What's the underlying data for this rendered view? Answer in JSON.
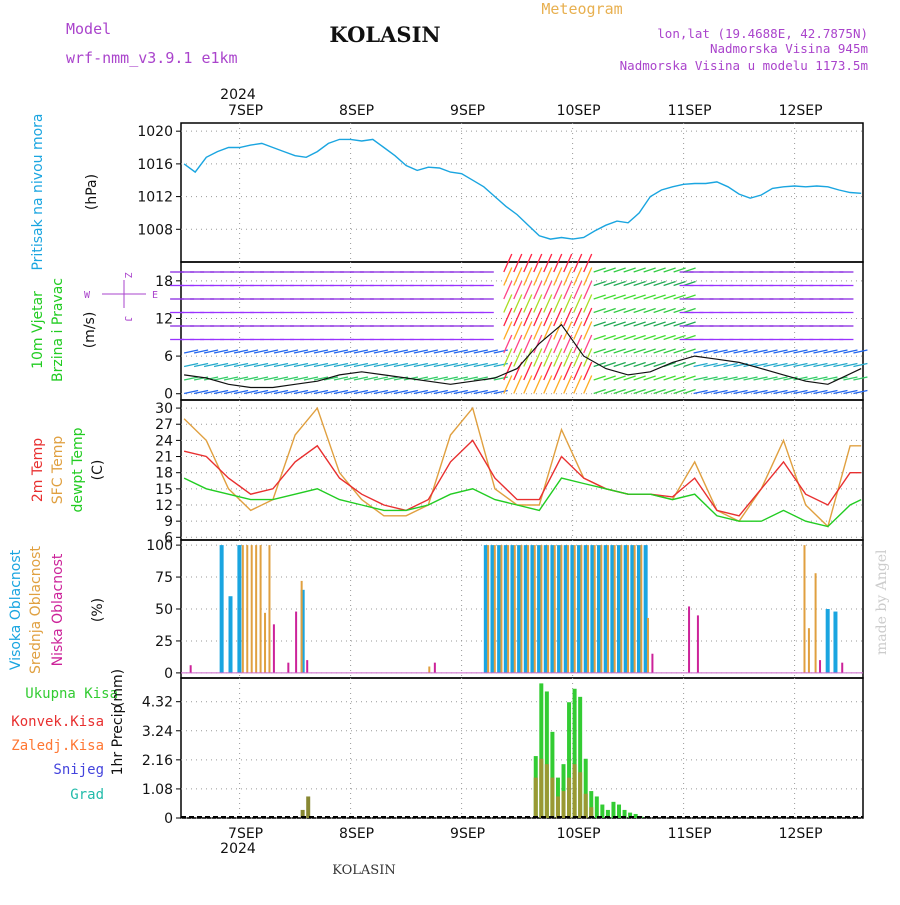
{
  "header": {
    "model_label": "Model",
    "model_name": "wrf-nmm_v3.9.1 e1km",
    "station": "KOLASIN",
    "product": "Meteogram",
    "lonlat": "lon,lat (19.4688E, 42.7875N)",
    "elevation": "Nadmorska Visina 945m",
    "model_elevation": "Nadmorska Visina u modelu 1173.5m",
    "year_top": "2024",
    "year_bottom": "2024",
    "footer_station": "KOLASIN",
    "credit": "made by Angel"
  },
  "colors": {
    "pressure": "#1aa5e0",
    "temp2m": "#e83030",
    "sfc_temp": "#e0a040",
    "dewpoint": "#22cc22",
    "high_cloud": "#1aa5e0",
    "mid_cloud": "#e0a040",
    "low_cloud": "#cc2299",
    "total_precip": "#33cc33",
    "conv_precip": "#e83030",
    "frozen_precip": "#ff7733",
    "snow": "#4444dd",
    "graupel": "#22bbaa",
    "purple_text": "#aa44cc",
    "gold_text": "#e8b050"
  },
  "wind_compass": {
    "n": "Z",
    "s": "J",
    "w": "W",
    "e": "E"
  },
  "chart_data": [
    {
      "type": "line",
      "id": "pressure",
      "ylabel": "Pritisak na nivou mora",
      "unit": "(hPa)",
      "ylim": [
        1004,
        1021
      ],
      "yticks": [
        "1020",
        "1016",
        "1012",
        "1008"
      ],
      "ytick_values": [
        1020,
        1016,
        1012,
        1008
      ],
      "x_dates": [
        "7SEP",
        "8SEP",
        "9SEP",
        "10SEP",
        "11SEP",
        "12SEP"
      ],
      "series": [
        {
          "x": [
            -0.5,
            -0.4,
            -0.3,
            -0.2,
            -0.1,
            0,
            0.1,
            0.2,
            0.3,
            0.4,
            0.5,
            0.6,
            0.7,
            0.8,
            0.9,
            1.0,
            1.1,
            1.2,
            1.3,
            1.4,
            1.5,
            1.6,
            1.7,
            1.8,
            1.9,
            2.0,
            2.1,
            2.2,
            2.3,
            2.4,
            2.5,
            2.6,
            2.7,
            2.8,
            2.9,
            3.0,
            3.1,
            3.2,
            3.3,
            3.4,
            3.5,
            3.6,
            3.7,
            3.8,
            3.9,
            4.0,
            4.1,
            4.2,
            4.3,
            4.4,
            4.5,
            4.6,
            4.7,
            4.8,
            4.9,
            5.0,
            5.1,
            5.2,
            5.3,
            5.4,
            5.5,
            5.6
          ],
          "y": [
            1016,
            1015,
            1016.8,
            1017.5,
            1018,
            1018,
            1018.3,
            1018.5,
            1018,
            1017.5,
            1017,
            1016.8,
            1017.5,
            1018.5,
            1019,
            1019,
            1018.8,
            1019,
            1018,
            1017,
            1015.8,
            1015.2,
            1015.6,
            1015.5,
            1015,
            1014.8,
            1014,
            1013.2,
            1012,
            1010.8,
            1009.8,
            1008.5,
            1007.2,
            1006.8,
            1007,
            1006.8,
            1007,
            1007.8,
            1008.5,
            1009,
            1008.8,
            1010,
            1012,
            1012.8,
            1013.2,
            1013.5,
            1013.6,
            1013.6,
            1013.8,
            1013.2,
            1012.3,
            1011.8,
            1012.2,
            1013,
            1013.2,
            1013.3,
            1013.2,
            1013.3,
            1013.2,
            1012.8,
            1012.5,
            1012.4
          ]
        }
      ]
    },
    {
      "type": "line",
      "id": "wind",
      "ylabel": "10m Vjetar",
      "ylabel2": "Brzina i Pravac",
      "unit": "(m/s)",
      "ylim": [
        -1,
        21
      ],
      "yticks": [
        "18",
        "12",
        "6",
        "0"
      ],
      "ytick_values": [
        18,
        12,
        6,
        0
      ],
      "series": [
        {
          "name": "speed",
          "x": [
            -0.5,
            -0.3,
            -0.1,
            0.1,
            0.3,
            0.5,
            0.7,
            0.9,
            1.1,
            1.3,
            1.5,
            1.7,
            1.9,
            2.1,
            2.3,
            2.5,
            2.7,
            2.9,
            3.1,
            3.3,
            3.5,
            3.7,
            3.9,
            4.1,
            4.3,
            4.5,
            4.7,
            4.9,
            5.1,
            5.3,
            5.6
          ],
          "y": [
            3,
            2.5,
            1.5,
            1,
            1,
            1.5,
            2,
            3,
            3.5,
            3,
            2.5,
            2,
            1.5,
            2,
            2.5,
            4,
            8,
            11,
            6,
            4,
            3,
            3.5,
            5,
            6,
            5.5,
            5,
            4,
            3,
            2,
            1.5,
            4
          ]
        }
      ]
    },
    {
      "type": "line",
      "id": "temperature",
      "ylabel": "2m Temp",
      "ylabel2": "SFC Temp",
      "ylabel3": "dewpt Temp",
      "unit": "(C)",
      "ylim": [
        5.5,
        31.5
      ],
      "yticks": [
        "30",
        "27",
        "24",
        "21",
        "18",
        "15",
        "12",
        "9",
        "6"
      ],
      "ytick_values": [
        30,
        27,
        24,
        21,
        18,
        15,
        12,
        9,
        6
      ],
      "series": [
        {
          "name": "2m Temp",
          "x": [
            -0.5,
            -0.3,
            -0.1,
            0.1,
            0.3,
            0.5,
            0.7,
            0.9,
            1.1,
            1.3,
            1.5,
            1.7,
            1.9,
            2.1,
            2.3,
            2.5,
            2.7,
            2.9,
            3.1,
            3.3,
            3.5,
            3.7,
            3.9,
            4.1,
            4.3,
            4.5,
            4.7,
            4.9,
            5.1,
            5.3,
            5.5,
            5.6
          ],
          "y": [
            22,
            21,
            17,
            14,
            15,
            20,
            23,
            17,
            14,
            12,
            11,
            13,
            20,
            24,
            17,
            13,
            13,
            21,
            17,
            15,
            14,
            14,
            13.5,
            17,
            11,
            10,
            15,
            20,
            14,
            12,
            18,
            18
          ]
        },
        {
          "name": "SFC Temp",
          "x": [
            -0.5,
            -0.3,
            -0.1,
            0.1,
            0.3,
            0.5,
            0.7,
            0.9,
            1.1,
            1.3,
            1.5,
            1.7,
            1.9,
            2.1,
            2.3,
            2.5,
            2.7,
            2.9,
            3.1,
            3.3,
            3.5,
            3.7,
            3.9,
            4.1,
            4.3,
            4.5,
            4.7,
            4.9,
            5.1,
            5.3,
            5.5,
            5.6
          ],
          "y": [
            28,
            24,
            15,
            11,
            13,
            25,
            30,
            18,
            13,
            10,
            10,
            12,
            25,
            30,
            15,
            12,
            12,
            26,
            17,
            15,
            14,
            14,
            13,
            20,
            11,
            9,
            15,
            24,
            12,
            8,
            23,
            23
          ]
        },
        {
          "name": "dewpt Temp",
          "x": [
            -0.5,
            -0.3,
            -0.1,
            0.1,
            0.3,
            0.5,
            0.7,
            0.9,
            1.1,
            1.3,
            1.5,
            1.7,
            1.9,
            2.1,
            2.3,
            2.5,
            2.7,
            2.9,
            3.1,
            3.3,
            3.5,
            3.7,
            3.9,
            4.1,
            4.3,
            4.5,
            4.7,
            4.9,
            5.1,
            5.3,
            5.5,
            5.6
          ],
          "y": [
            17,
            15,
            14,
            13,
            13,
            14,
            15,
            13,
            12,
            11,
            11,
            12,
            14,
            15,
            13,
            12,
            11,
            17,
            16,
            15,
            14,
            14,
            13,
            14,
            10,
            9,
            9,
            11,
            9,
            8,
            12,
            13
          ]
        }
      ]
    },
    {
      "type": "bar",
      "id": "clouds",
      "ylabel": "Visoka Oblacnost",
      "ylabel2": "Srednja Oblacnost",
      "ylabel3": "Niska Oblacnost",
      "unit": "(%)",
      "ylim": [
        -4,
        104
      ],
      "yticks": [
        "100",
        "75",
        "50",
        "25",
        "0"
      ],
      "ytick_values": [
        100,
        75,
        50,
        25,
        0
      ],
      "series": [
        {
          "name": "Visoka Oblacnost",
          "x": [
            -0.18,
            -0.1,
            -0.02,
            0.55,
            2.2,
            2.26,
            2.32,
            2.38,
            2.44,
            2.5,
            2.56,
            2.62,
            2.68,
            2.74,
            2.8,
            2.86,
            2.92,
            2.98,
            3.04,
            3.1,
            3.16,
            3.22,
            3.28,
            3.34,
            3.4,
            3.46,
            3.52,
            3.58,
            3.64,
            5.28,
            5.35
          ],
          "y": [
            100,
            60,
            100,
            65,
            100,
            100,
            100,
            100,
            100,
            100,
            100,
            100,
            100,
            100,
            100,
            100,
            100,
            100,
            100,
            100,
            100,
            100,
            100,
            100,
            100,
            100,
            100,
            100,
            100,
            50,
            48
          ]
        },
        {
          "name": "Srednja Oblacnost",
          "x": [
            0.02,
            0.06,
            0.1,
            0.14,
            0.18,
            0.22,
            0.26,
            0.55,
            2.23,
            2.29,
            2.35,
            2.41,
            2.47,
            2.53,
            2.59,
            2.65,
            2.71,
            2.77,
            2.83,
            2.89,
            2.95,
            3.01,
            3.07,
            3.13,
            3.19,
            3.25,
            3.31,
            3.37,
            3.43,
            3.49,
            3.55,
            3.61,
            3.67,
            1.7,
            5.08,
            5.12,
            5.18
          ],
          "y": [
            100,
            100,
            100,
            100,
            100,
            47,
            100,
            72,
            100,
            100,
            100,
            100,
            100,
            100,
            100,
            100,
            100,
            100,
            100,
            100,
            100,
            100,
            100,
            100,
            100,
            100,
            100,
            100,
            100,
            100,
            100,
            100,
            43,
            5,
            100,
            35,
            78
          ]
        },
        {
          "name": "Niska Oblacnost",
          "x": [
            -0.45,
            0.3,
            0.43,
            0.5,
            0.6,
            1.75,
            3.71,
            4.04,
            4.12,
            5.22,
            5.42
          ],
          "y": [
            6,
            38,
            8,
            48,
            10,
            8,
            15,
            52,
            45,
            10,
            8
          ]
        }
      ]
    },
    {
      "type": "bar",
      "id": "precip",
      "ylabel": "1hr Precip",
      "unit": "(mm)",
      "ylim": [
        0,
        5.2
      ],
      "yticks": [
        "4.32",
        "3.24",
        "2.16",
        "1.08",
        "0"
      ],
      "ytick_values": [
        4.32,
        3.24,
        2.16,
        1.08,
        0
      ],
      "legend": [
        "Ukupna Kisa",
        "Konvek.Kisa",
        "Zaledj.Kisa",
        "Snijeg",
        "Grad"
      ],
      "series": [
        {
          "name": "Ukupna Kisa",
          "x": [
            0.55,
            0.6,
            2.65,
            2.7,
            2.75,
            2.8,
            2.85,
            2.9,
            2.95,
            3.0,
            3.05,
            3.1,
            3.15,
            3.2,
            3.25,
            3.3,
            3.35,
            3.4,
            3.45,
            3.5,
            3.55,
            3.6
          ],
          "y": [
            0.3,
            0.8,
            2.3,
            5.0,
            4.7,
            3.2,
            1.5,
            2.0,
            4.3,
            4.8,
            4.5,
            2.2,
            1.0,
            0.8,
            0.5,
            0.3,
            0.6,
            0.5,
            0.3,
            0.2,
            0.15,
            0.05
          ]
        },
        {
          "name": "Konvek.Kisa",
          "x": [
            2.65,
            2.7,
            2.75,
            2.8,
            2.85,
            2.9,
            2.95,
            3.0,
            3.05,
            3.1,
            3.15
          ],
          "y": [
            1.5,
            2.2,
            2.0,
            1.5,
            0.8,
            1.0,
            1.5,
            2.0,
            1.7,
            0.9,
            0.4
          ]
        }
      ]
    }
  ]
}
